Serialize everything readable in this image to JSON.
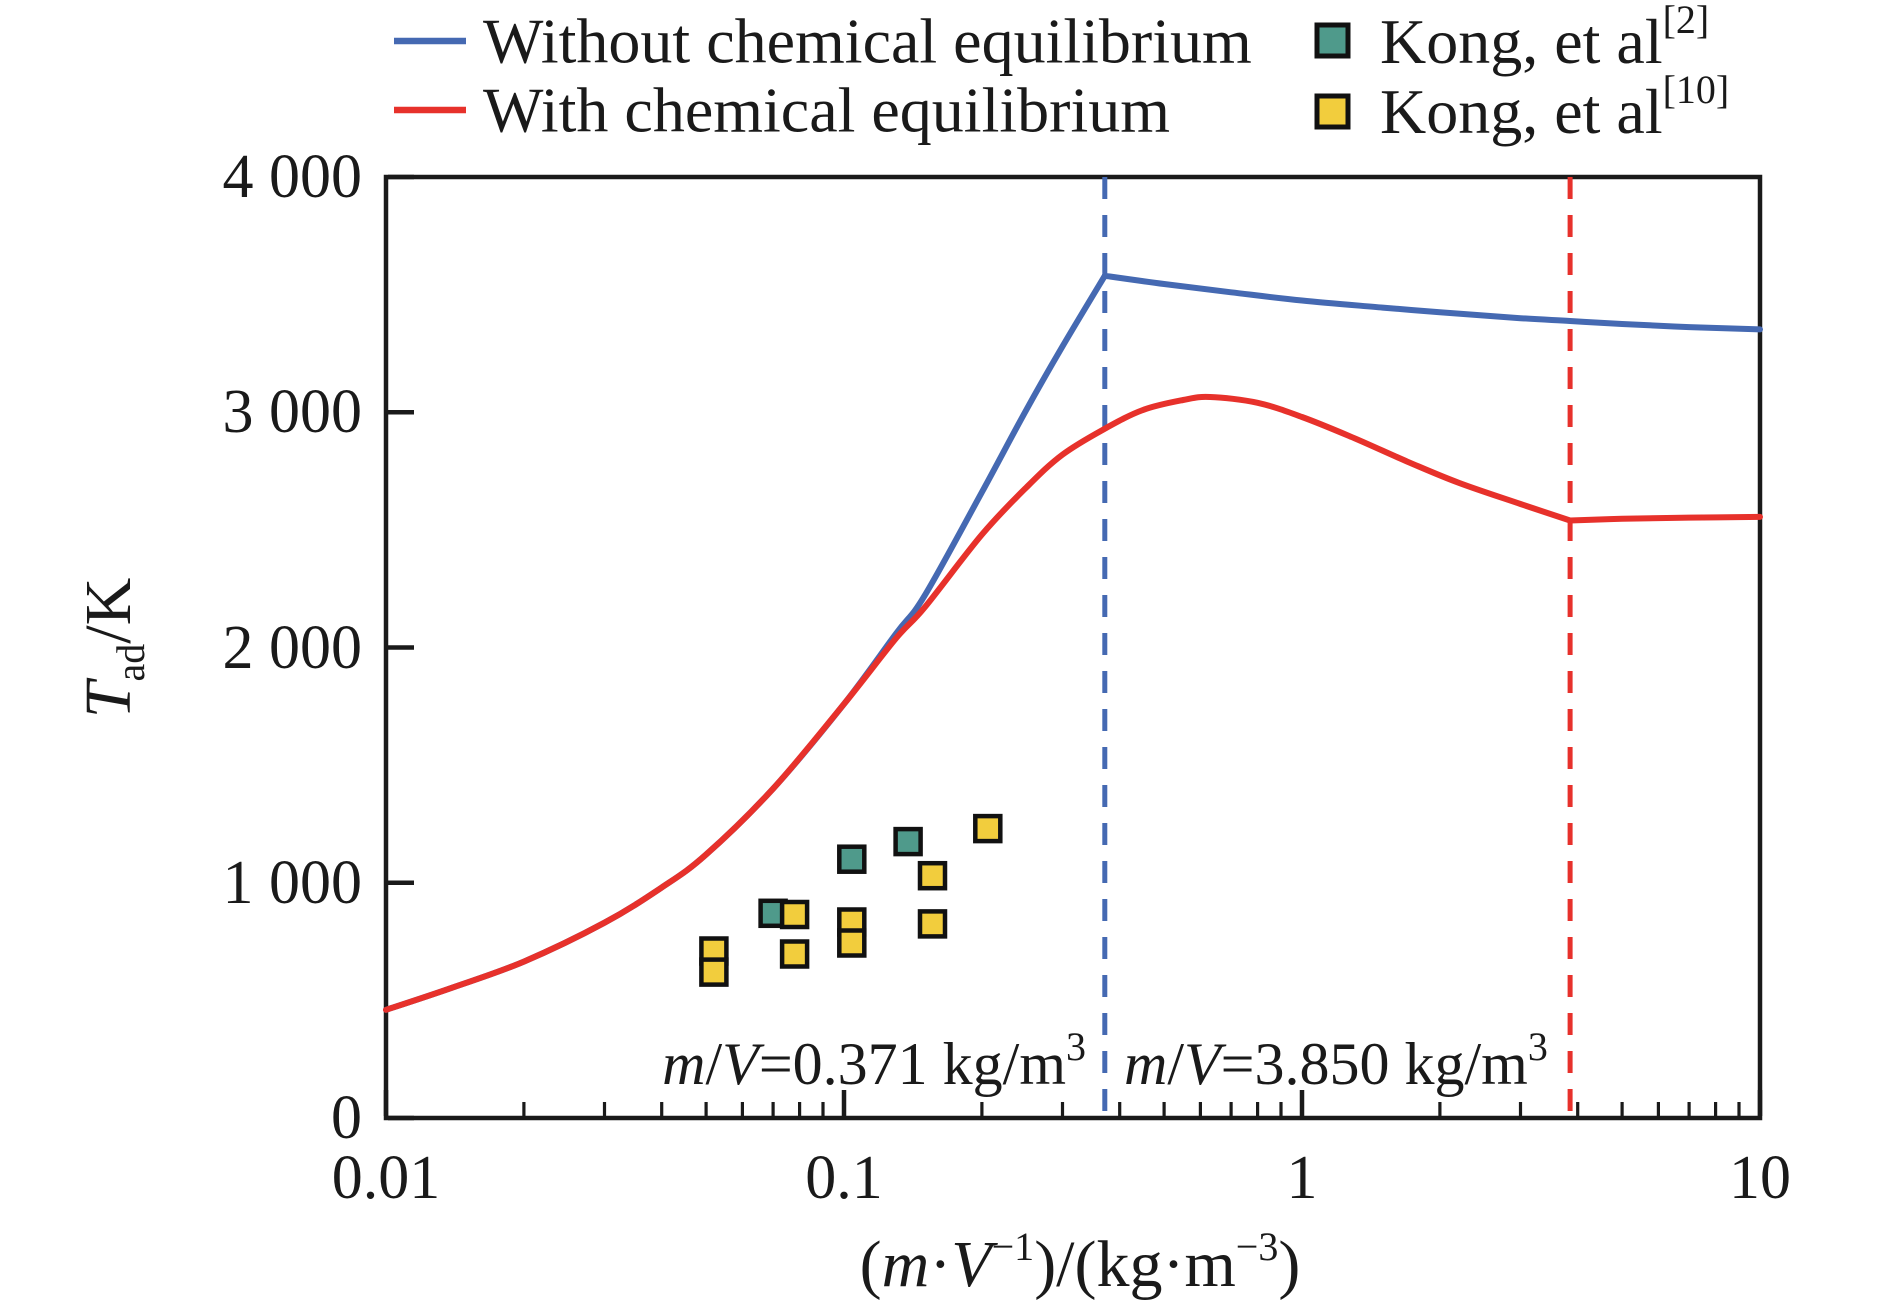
{
  "chart_data": {
    "type": "line",
    "x_scale": "log",
    "xlim": [
      0.01,
      10
    ],
    "ylim": [
      0,
      4000
    ],
    "x_axis": {
      "tick_labels": [
        "0.01",
        "0.1",
        "1",
        "10"
      ],
      "major_ticks": [
        0.01,
        0.1,
        1,
        10
      ],
      "minor_ticks": [
        0.02,
        0.03,
        0.04,
        0.05,
        0.06,
        0.07,
        0.08,
        0.09,
        0.2,
        0.3,
        0.4,
        0.5,
        0.6,
        0.7,
        0.8,
        0.9,
        2,
        3,
        4,
        5,
        6,
        7,
        8,
        9
      ],
      "label_parts": {
        "open": "(",
        "m": "m",
        "dot": "·",
        "V": "V",
        "sup1": "−1",
        "mid": ")/(kg·m",
        "sup2": "−3",
        "close": ")"
      }
    },
    "y_axis": {
      "tick_labels": [
        "4 000",
        "3 000",
        "2 000",
        "1 000",
        "0"
      ],
      "major_ticks": [
        0,
        1000,
        2000,
        3000,
        4000
      ],
      "label_parts": {
        "T": "T",
        "sub": "ad",
        "unit": "/K"
      }
    },
    "series": [
      {
        "name": "Without chemical equilibrium",
        "color": "#4569b2",
        "segments": [
          [
            [
              0.01,
              460
            ],
            [
              0.014,
              555
            ],
            [
              0.02,
              665
            ],
            [
              0.03,
              830
            ],
            [
              0.04,
              980
            ],
            [
              0.05,
              1120
            ],
            [
              0.07,
              1400
            ],
            [
              0.1,
              1760
            ],
            [
              0.13,
              2060
            ],
            [
              0.15,
              2220
            ],
            [
              0.2,
              2660
            ],
            [
              0.25,
              3010
            ],
            [
              0.3,
              3280
            ],
            [
              0.371,
              3580
            ]
          ],
          [
            [
              0.371,
              3580
            ],
            [
              0.5,
              3545
            ],
            [
              0.7,
              3510
            ],
            [
              1.0,
              3475
            ],
            [
              1.5,
              3445
            ],
            [
              2.0,
              3425
            ],
            [
              3.0,
              3400
            ],
            [
              3.85,
              3388
            ],
            [
              5.0,
              3375
            ],
            [
              7.0,
              3362
            ],
            [
              10,
              3352
            ]
          ]
        ]
      },
      {
        "name": "With chemical equilibrium",
        "color": "#e7312b",
        "segments": [
          [
            [
              0.01,
              460
            ],
            [
              0.014,
              555
            ],
            [
              0.02,
              665
            ],
            [
              0.03,
              830
            ],
            [
              0.04,
              980
            ],
            [
              0.05,
              1120
            ],
            [
              0.07,
              1400
            ],
            [
              0.1,
              1760
            ],
            [
              0.13,
              2040
            ],
            [
              0.15,
              2170
            ],
            [
              0.2,
              2480
            ],
            [
              0.25,
              2680
            ],
            [
              0.3,
              2820
            ],
            [
              0.371,
              2930
            ],
            [
              0.45,
              3010
            ],
            [
              0.55,
              3052
            ],
            [
              0.63,
              3065
            ],
            [
              0.8,
              3040
            ],
            [
              1.0,
              2980
            ],
            [
              1.3,
              2890
            ],
            [
              1.7,
              2790
            ],
            [
              2.2,
              2700
            ],
            [
              3.0,
              2610
            ],
            [
              3.85,
              2540
            ]
          ],
          [
            [
              3.85,
              2540
            ],
            [
              5,
              2547
            ],
            [
              7,
              2552
            ],
            [
              10,
              2555
            ]
          ]
        ]
      }
    ],
    "scatter": [
      {
        "name": "Kong, et al",
        "ref": "[2]",
        "color": "#4f9a8b",
        "points": [
          [
            0.07,
            870
          ],
          [
            0.104,
            1100
          ],
          [
            0.138,
            1175
          ]
        ]
      },
      {
        "name": "Kong, et al",
        "ref": "[10]",
        "color": "#f2cd3d",
        "points": [
          [
            0.052,
            710
          ],
          [
            0.052,
            620
          ],
          [
            0.078,
            865
          ],
          [
            0.078,
            697
          ],
          [
            0.104,
            833
          ],
          [
            0.104,
            744
          ],
          [
            0.156,
            1030
          ],
          [
            0.156,
            825
          ],
          [
            0.206,
            1230
          ]
        ]
      }
    ],
    "vlines": [
      {
        "x": 0.371,
        "color": "#4569b2",
        "style": "dashed",
        "annotation": {
          "italic1": "m",
          "slash": "/",
          "italic2": "V",
          "rest": "=0.371 kg/m",
          "sup": "3",
          "text_color": "#2b59ae"
        }
      },
      {
        "x": 3.85,
        "color": "#e7312b",
        "style": "dashed",
        "annotation": {
          "italic1": "m",
          "slash": "/",
          "italic2": "V",
          "rest": "=3.850 kg/m",
          "sup": "3",
          "text_color": "#e8231d"
        }
      }
    ],
    "legend": [
      {
        "label": "Without chemical equilibrium",
        "marker": "line",
        "color": "#4569b2"
      },
      {
        "label": "With chemical equilibrium",
        "marker": "line",
        "color": "#e7312b"
      },
      {
        "label": "Kong, et al",
        "sup": "[2]",
        "marker": "square",
        "color": "#4f9a8b"
      },
      {
        "label": "Kong, et al",
        "sup": "[10]",
        "marker": "square",
        "color": "#f2cd3d"
      }
    ],
    "legend_position": "top",
    "grid": false
  }
}
